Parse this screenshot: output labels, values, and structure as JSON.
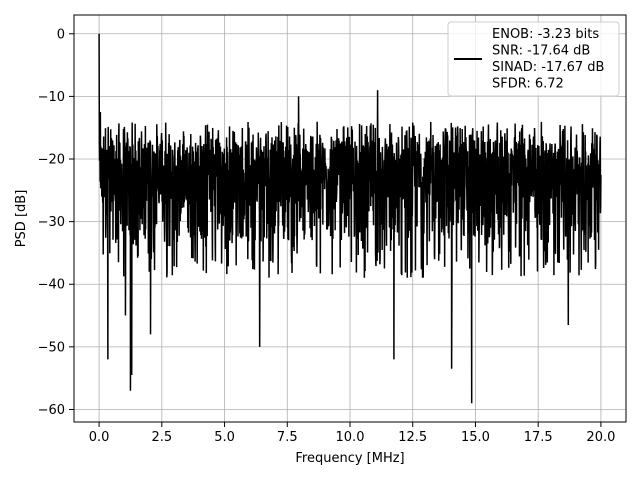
{
  "chart_data": {
    "type": "line",
    "xlabel": "Frequency [MHz]",
    "ylabel": "PSD [dB]",
    "xlim": [
      -1.0,
      21.0
    ],
    "ylim": [
      -62.0,
      3.0
    ],
    "xticks": [
      0.0,
      2.5,
      5.0,
      7.5,
      10.0,
      12.5,
      15.0,
      17.5,
      20.0
    ],
    "xtick_labels": [
      "0.0",
      "2.5",
      "5.0",
      "7.5",
      "10.0",
      "12.5",
      "15.0",
      "17.5",
      "20.0"
    ],
    "yticks": [
      0,
      -10,
      -20,
      -30,
      -40,
      -50,
      -60
    ],
    "ytick_labels": [
      "0",
      "−10",
      "−20",
      "−30",
      "−40",
      "−50",
      "−60"
    ],
    "grid": true,
    "legend_position": "top-right",
    "series": [
      {
        "name": "ENOB: -3.23 bits\nSNR: -17.64 dB\nSINAD: -17.67 dB\nSFDR: 6.72",
        "color": "#000000",
        "x_start": 0.0,
        "x_end": 20.0,
        "noise_floor_mean": -22,
        "noise_band": [
          -33,
          -14
        ],
        "peaks": [
          {
            "x": 0.0,
            "y": 0.0
          },
          {
            "x": 0.05,
            "y": -12.5
          },
          {
            "x": 0.1,
            "y": -24.0
          },
          {
            "x": 7.95,
            "y": -10.0
          },
          {
            "x": 11.1,
            "y": -9.0
          }
        ],
        "dips": [
          {
            "x": 0.35,
            "y": -52.0
          },
          {
            "x": 1.05,
            "y": -45.0
          },
          {
            "x": 1.25,
            "y": -57.0
          },
          {
            "x": 1.3,
            "y": -54.5
          },
          {
            "x": 2.05,
            "y": -48.0
          },
          {
            "x": 6.4,
            "y": -50.0
          },
          {
            "x": 11.75,
            "y": -52.0
          },
          {
            "x": 14.05,
            "y": -53.5
          },
          {
            "x": 14.85,
            "y": -59.0
          },
          {
            "x": 18.7,
            "y": -46.5
          }
        ]
      }
    ]
  },
  "legend": {
    "lines": [
      "ENOB: -3.23 bits",
      "SNR: -17.64 dB",
      "SINAD: -17.67 dB",
      "SFDR: 6.72"
    ]
  }
}
